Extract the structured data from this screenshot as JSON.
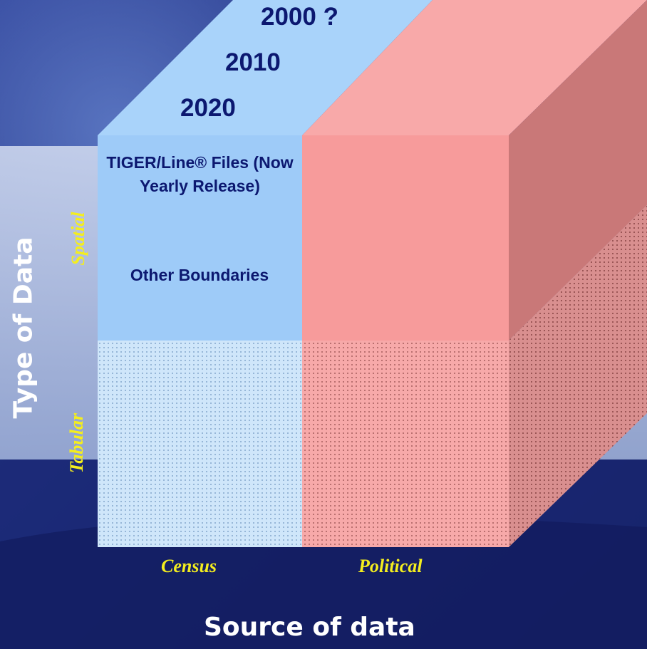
{
  "diagram": {
    "years": [
      "2000 ?",
      "2010",
      "2020"
    ],
    "cells": {
      "tiger_line": "TIGER/Line® Files  (Now Yearly Release)",
      "other_boundaries": "Other Boundaries"
    },
    "axes": {
      "y_title": "Type of Data",
      "y_categories": [
        "Spatial",
        "Tabular"
      ],
      "x_title": "Source of data",
      "x_categories": [
        "Census",
        "Political"
      ]
    },
    "colors": {
      "census_face": "#9ecbf8",
      "political_face": "#f79b9b",
      "political_side": "#c97373",
      "text_navy": "#0c1870",
      "axis_yellow": "#f4ee1e"
    }
  }
}
